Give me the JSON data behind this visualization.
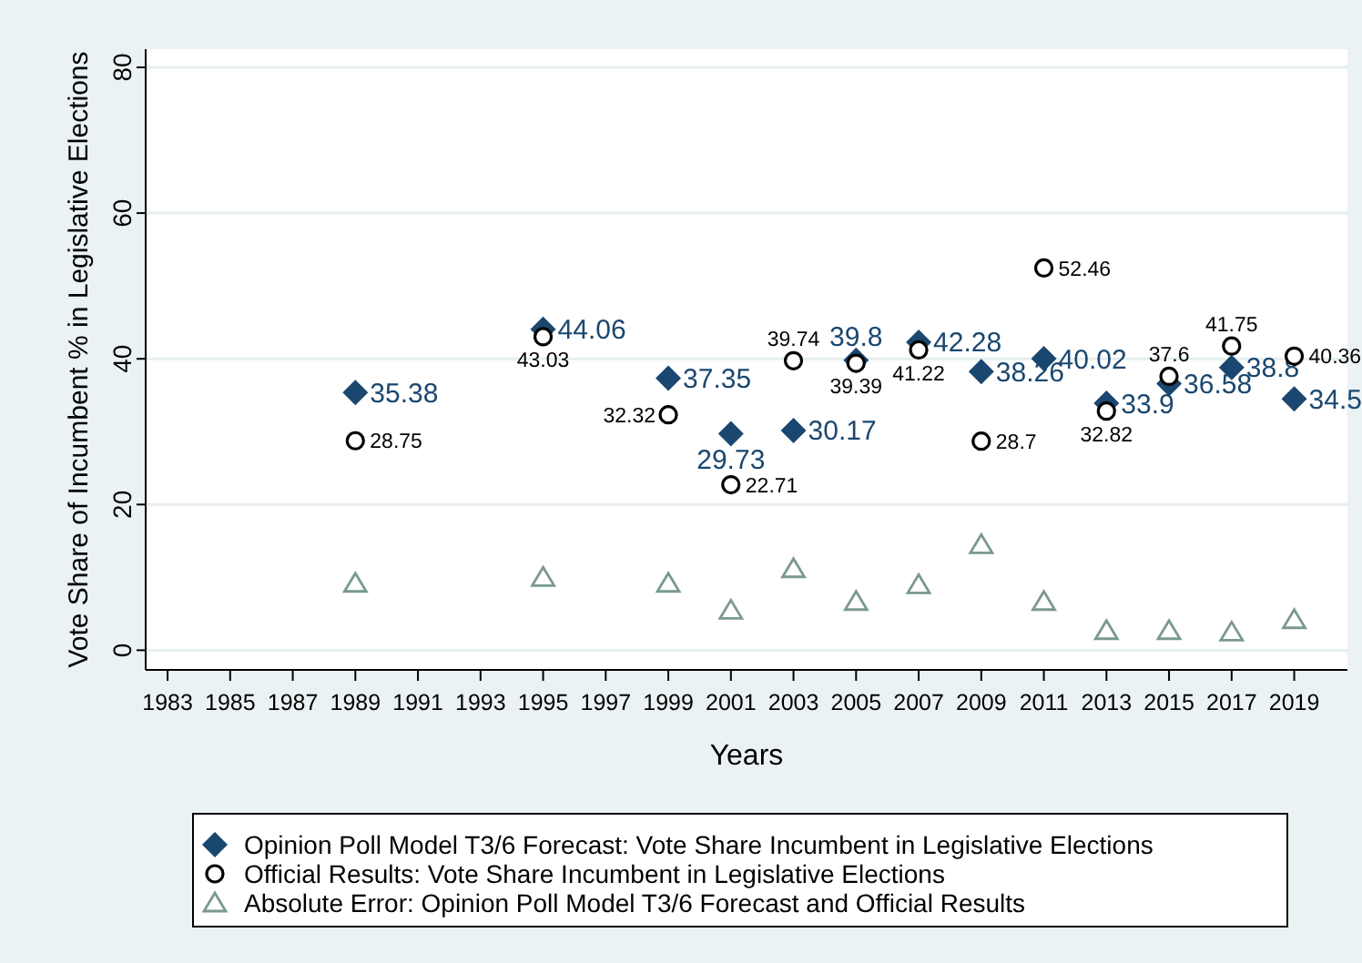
{
  "chart_data": {
    "type": "scatter",
    "xlabel": "Years",
    "ylabel": "Vote Share of Incumbent % in Legislative Elections",
    "x": [
      1989,
      1995,
      1999,
      2001,
      2003,
      2005,
      2007,
      2009,
      2011,
      2013,
      2015,
      2017,
      2019
    ],
    "series": [
      {
        "name": "Opinion Poll Model T3/6 Forecast: Vote Share Incumbent in Legislative Elections",
        "color": "#1a476f",
        "marker": "diamond",
        "values": [
          35.38,
          44.06,
          37.35,
          29.73,
          30.17,
          39.8,
          42.28,
          38.26,
          40.02,
          33.9,
          36.58,
          38.8,
          34.5
        ],
        "value_labels": [
          "35.38",
          "44.06",
          "37.35",
          "29.73",
          "30.17",
          "39.8",
          "42.28",
          "38.26",
          "40.02",
          "33.9",
          "36.58",
          "38.8",
          "34.5"
        ]
      },
      {
        "name": "Official Results: Vote Share Incumbent in Legislative Elections",
        "color": "#000000",
        "marker": "circle",
        "values": [
          28.75,
          43.03,
          32.32,
          22.71,
          39.74,
          39.39,
          41.22,
          28.7,
          52.46,
          32.82,
          37.6,
          41.75,
          40.36
        ],
        "value_labels": [
          "28.75",
          "43.03",
          "32.32",
          "22.71",
          "39.74",
          "39.39",
          "41.22",
          "28.7",
          "52.46",
          "32.82",
          "37.6",
          "41.75",
          "40.36"
        ]
      },
      {
        "name": "Absolute Error: Opinion Poll Model T3/6 Forecast and Official Results",
        "color": "#7a9a8a",
        "marker": "triangle",
        "values": [
          9.2,
          10,
          9.2,
          5.5,
          11.2,
          6.7,
          9,
          14.5,
          6.7,
          2.7,
          2.7,
          2.5,
          4.2
        ]
      }
    ],
    "xlim": [
      1982.3,
      2020.7
    ],
    "xticks": [
      1983,
      1985,
      1987,
      1989,
      1991,
      1993,
      1995,
      1997,
      1999,
      2001,
      2003,
      2005,
      2007,
      2009,
      2011,
      2013,
      2015,
      2017,
      2019
    ],
    "ylim": [
      -2.7,
      82.5
    ],
    "yticks": [
      0,
      20,
      40,
      60,
      80
    ],
    "grid": "y",
    "legend": "bottom"
  }
}
